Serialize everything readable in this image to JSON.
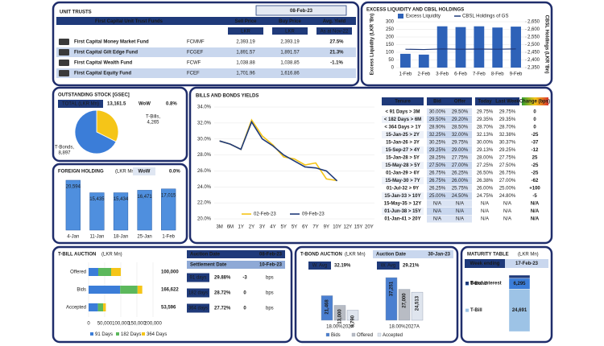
{
  "unit_trusts": {
    "title": "UNIT TRUSTS",
    "date": "08-Feb-23",
    "columns": [
      "First Capital Unit Trust Funds",
      "Sell Price",
      "Buy Price",
      "Avg. Yield"
    ],
    "units": [
      "LKR",
      "LKR",
      "As at Nov-22"
    ],
    "rows": [
      [
        "First Capital Money Market Fund",
        "FCMMF",
        "2,393.19",
        "2,393.19",
        "27.5%"
      ],
      [
        "First Capital Gilt Edge Fund",
        "FCGEF",
        "1,891.57",
        "1,891.57",
        "21.3%"
      ],
      [
        "First Capital Wealth Fund",
        "FCWF",
        "1,038.88",
        "1,038.85",
        "-1.1%"
      ],
      [
        "First Capital Equity Fund",
        "FCEF",
        "1,701.96",
        "1,616.86"
      ]
    ]
  },
  "chart_data": [
    {
      "type": "bar_line",
      "title": "EXCESS LIQUIDITY AND CBSL HOLDINGS",
      "y_label": "Excess Liquidity (LKR 'Bn)",
      "y2_label": "CBSL Holdings (LKR 'Bn)",
      "categories": [
        "1-Feb",
        "2-Feb",
        "3-Feb",
        "6-Feb",
        "7-Feb",
        "8-Feb",
        "9-Feb"
      ],
      "series": [
        {
          "name": "Excess Liquidity",
          "color": "#2e62b8",
          "values": [
            90,
            85,
            270,
            265,
            270,
            262,
            268
          ]
        },
        {
          "name": "CBSL Holdings of GS",
          "color": "#1f3a7a",
          "axis": "y2",
          "values": [
            2470,
            2468,
            2472,
            2470,
            2471,
            2470,
            2472
          ]
        }
      ],
      "ylim": [
        0,
        300
      ],
      "yticks": [
        0,
        50,
        100,
        150,
        200,
        250,
        300
      ],
      "y2lim": [
        2350,
        2650
      ],
      "y2ticks": [
        {
          "value": 2350,
          "label": "2,350"
        },
        {
          "value": 2400,
          "label": "2,400"
        },
        {
          "value": 2450,
          "label": "2,450"
        },
        {
          "value": 2500,
          "label": "2,500"
        },
        {
          "value": 2550,
          "label": "2,550"
        },
        {
          "value": 2600,
          "label": "2,600"
        },
        {
          "value": 2650,
          "label": "2,650"
        }
      ],
      "grid": true
    },
    {
      "type": "pie",
      "title": "OUTSTANDING STOCK [GSEC]",
      "total_label": "TOTAL (LKR Mn)",
      "total": "13,161.5",
      "wow_label": "WoW",
      "wow": "0.8%",
      "categories": [
        "T-Bills,",
        "T-Bonds,"
      ],
      "values": [
        4265,
        8897
      ],
      "value_labels": [
        "4,265",
        "8,897"
      ],
      "colors": [
        "#f5c518",
        "#3b7dd8"
      ]
    },
    {
      "type": "bar",
      "title": "FOREIGN HOLDING",
      "unit": "(LKR Mn)",
      "wow_label": "WoW",
      "wow": "0.0%",
      "categories": [
        "4-Jan",
        "11-Jan",
        "18-Jan",
        "25-Jan",
        "1-Feb"
      ],
      "values": [
        20594,
        15435,
        15434,
        16471,
        17015
      ],
      "value_labels": [
        "20,594",
        "15,435",
        "15,434",
        "16,471",
        "17,015"
      ],
      "color": "#4f8fde"
    },
    {
      "type": "line",
      "title": "BILLS AND BONDS YIELDS",
      "categories": [
        "3M",
        "6M",
        "1Y",
        "2Y",
        "3Y",
        "4Y",
        "5Y",
        "5Y",
        "6Y",
        "7Y",
        "9Y",
        "10Y",
        "12Y",
        "15Y",
        "20Y"
      ],
      "series": [
        {
          "name": "02-Feb-23",
          "color": "#f5c518",
          "values": [
            29.75,
            29.35,
            28.7,
            32.38,
            30.37,
            29.25,
            27.75,
            27.5,
            26.75,
            27.0,
            25.0,
            24.8,
            null,
            null,
            null
          ]
        },
        {
          "name": "09-Feb-23",
          "color": "#1f3a7a",
          "values": [
            29.75,
            29.35,
            28.7,
            32.13,
            30.0,
            29.13,
            28.0,
            27.25,
            26.5,
            26.38,
            26.0,
            24.75,
            null,
            null,
            null
          ]
        }
      ],
      "ylim": [
        20,
        34
      ],
      "yticks": [
        {
          "value": 20,
          "label": "20.0%"
        },
        {
          "value": 22,
          "label": "22.0%"
        },
        {
          "value": 24,
          "label": "24.0%"
        },
        {
          "value": 26,
          "label": "26.0%"
        },
        {
          "value": 28,
          "label": "28.0%"
        },
        {
          "value": 30,
          "label": "30.0%"
        },
        {
          "value": 32,
          "label": "32.0%"
        },
        {
          "value": 34,
          "label": "34.0%"
        }
      ],
      "grid": true
    },
    {
      "type": "hbar_stacked",
      "title": "T-BILL AUCTION",
      "unit": "(LKR Mn)",
      "categories": [
        "Offered",
        "Bids",
        "Accepted"
      ],
      "series": [
        {
          "name": "91 Days",
          "color": "#3b7dd8",
          "values": [
            30000,
            98000,
            29000
          ]
        },
        {
          "name": "182 Days",
          "color": "#5cb85c",
          "values": [
            40000,
            54000,
            16000
          ]
        },
        {
          "name": "364 Days",
          "color": "#f5c518",
          "values": [
            30000,
            14622,
            8596
          ]
        }
      ],
      "totals": [
        "100,000",
        "166,622",
        "53,596"
      ],
      "xlim": [
        0,
        200000
      ],
      "xticks": [
        0,
        {
          "value": 50000,
          "label": "50,000"
        },
        {
          "value": 100000,
          "label": "100,000"
        },
        {
          "value": 150000,
          "label": "150,000"
        },
        {
          "value": 200000,
          "label": "200,000"
        }
      ],
      "info": {
        "auction_date_label": "Auction Date",
        "auction_date": "08-Feb-23",
        "settlement_label": "Settlement Date",
        "settlement_date": "10-Feb-23",
        "rows": [
          [
            "91 days",
            "29.88%",
            "-3",
            "bps"
          ],
          [
            "182 days",
            "28.72%",
            "0",
            "bps"
          ],
          [
            "364 days",
            "27.72%",
            "0",
            "bps"
          ]
        ]
      }
    },
    {
      "type": "bar_grouped",
      "title": "T-BOND AUCTION",
      "unit": "(LKR Mn)",
      "auction_date_label": "Auction Date",
      "auction_date": "30-Jan-23",
      "wavg": [
        {
          "label": "W. Avg",
          "value": "32.19%"
        },
        {
          "label": "W. Avg",
          "value": "29.21%"
        }
      ],
      "categories": [
        "18.00%2027",
        "18.00%2027A"
      ],
      "series": [
        {
          "name": "Bids",
          "color": "#4a7fd0",
          "values": [
            21468,
            37251
          ],
          "value_labels": [
            "21,468",
            "37,251"
          ]
        },
        {
          "name": "Offered",
          "color": "#b8bcc4",
          "values": [
            13000,
            27000
          ],
          "value_labels": [
            "13,000",
            "27,000"
          ]
        },
        {
          "name": "Accepted",
          "color": "#dfe5ee",
          "values": [
            8790,
            24513
          ],
          "value_labels": [
            "8,790",
            "24,513"
          ]
        }
      ]
    },
    {
      "type": "stacked_bar",
      "title": "MATURITY TABLE",
      "unit": "(LKR Mn)",
      "week_label": "Week ending",
      "week": "17-Feb-23",
      "series": [
        {
          "name": "T-Bill",
          "color": "#9dc3e6",
          "values": [
            24691
          ],
          "value_labels": [
            "24,691"
          ]
        },
        {
          "name": "T-Bond",
          "color": "#3b7dd8",
          "values": [
            6295
          ],
          "value_labels": [
            "6,295"
          ]
        },
        {
          "name": "Bond interest",
          "color": "#1f3a7a",
          "values": [
            1800
          ]
        }
      ]
    }
  ],
  "yields_table": {
    "columns": [
      "Tenure",
      "Bid",
      "Offer",
      "Today",
      "Last Week",
      "Change (bps)"
    ],
    "rows": [
      [
        "< 91 Days > 3M",
        "30.00%",
        "29.50%",
        "29.75%",
        "29.75%",
        "0"
      ],
      [
        "< 182 Days > 6M",
        "29.50%",
        "29.20%",
        "29.35%",
        "29.35%",
        "0"
      ],
      [
        "< 364 Days > 1Y",
        "28.90%",
        "28.50%",
        "28.70%",
        "28.70%",
        "0"
      ],
      [
        "15-Jan-25 > 2Y",
        "32.25%",
        "32.00%",
        "32.13%",
        "32.38%",
        "-25"
      ],
      [
        "15-Jan-26 > 3Y",
        "30.25%",
        "29.75%",
        "30.00%",
        "30.37%",
        "-37"
      ],
      [
        "15-Sep-27 > 4Y",
        "29.25%",
        "29.00%",
        "29.13%",
        "29.25%",
        "-12"
      ],
      [
        "15-Jan-28 > 5Y",
        "28.25%",
        "27.75%",
        "28.00%",
        "27.75%",
        "25"
      ],
      [
        "15-May-28 > 5Y",
        "27.50%",
        "27.00%",
        "27.25%",
        "27.50%",
        "-25"
      ],
      [
        "01-Jan-29 > 6Y",
        "26.75%",
        "26.25%",
        "26.50%",
        "26.75%",
        "-25"
      ],
      [
        "15-May-30 > 7Y",
        "26.75%",
        "26.00%",
        "26.38%",
        "27.00%",
        "-62"
      ],
      [
        "01-Jul-32 > 9Y",
        "26.25%",
        "25.75%",
        "26.00%",
        "25.00%",
        "+100"
      ],
      [
        "15-Jan-33 > 10Y",
        "25.00%",
        "24.50%",
        "24.75%",
        "24.80%",
        "-5"
      ],
      [
        "15-May-35 > 12Y",
        "N/A",
        "N/A",
        "N/A",
        "N/A",
        "N/A"
      ],
      [
        "01-Jun-38 > 15Y",
        "N/A",
        "N/A",
        "N/A",
        "N/A",
        "N/A"
      ],
      [
        "01-Jan-41 > 20Y",
        "N/A",
        "N/A",
        "N/A",
        "N/A",
        "N/A"
      ]
    ]
  }
}
